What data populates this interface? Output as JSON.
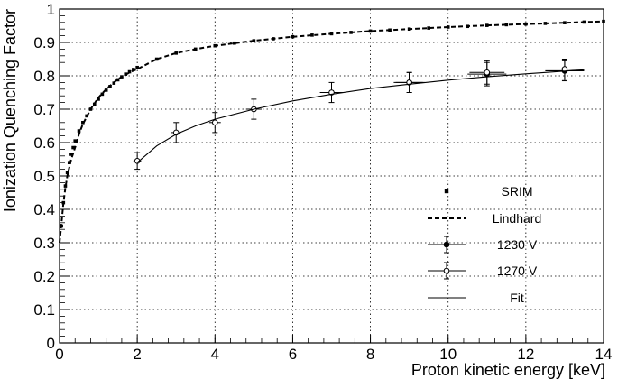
{
  "chart_data": {
    "type": "scatter",
    "xlabel": "Proton kinetic energy [keV]",
    "ylabel": "Ionization Quenching Factor",
    "xlim": [
      0,
      14
    ],
    "ylim": [
      0,
      1
    ],
    "x_ticks": [
      "0",
      "2",
      "4",
      "6",
      "8",
      "10",
      "12",
      "14"
    ],
    "y_ticks": [
      "0",
      "0.1",
      "0.2",
      "0.3",
      "0.4",
      "0.5",
      "0.6",
      "0.7",
      "0.8",
      "0.9",
      "1"
    ],
    "grid": true,
    "legend_position": "bottom-right",
    "series": [
      {
        "name": "SRIM",
        "style": "square-markers",
        "x": [
          0.05,
          0.1,
          0.15,
          0.2,
          0.25,
          0.3,
          0.35,
          0.4,
          0.5,
          0.6,
          0.7,
          0.8,
          0.9,
          1.0,
          1.1,
          1.2,
          1.3,
          1.4,
          1.5,
          1.6,
          1.7,
          1.8,
          1.9,
          2.0,
          2.5,
          3.0,
          3.5,
          4.0,
          4.5,
          5.0,
          5.5,
          6.0,
          6.5,
          7.0,
          7.5,
          8.0,
          8.5,
          9.0,
          9.5,
          10.0,
          10.5,
          11.0,
          11.5,
          12.0,
          12.5,
          13.0,
          13.5,
          14.0
        ],
        "y": [
          0.35,
          0.42,
          0.47,
          0.51,
          0.54,
          0.565,
          0.585,
          0.605,
          0.635,
          0.66,
          0.68,
          0.7,
          0.715,
          0.73,
          0.745,
          0.757,
          0.768,
          0.778,
          0.788,
          0.797,
          0.805,
          0.812,
          0.819,
          0.825,
          0.85,
          0.868,
          0.88,
          0.89,
          0.898,
          0.905,
          0.911,
          0.917,
          0.922,
          0.926,
          0.93,
          0.934,
          0.937,
          0.94,
          0.943,
          0.946,
          0.948,
          0.951,
          0.953,
          0.955,
          0.957,
          0.959,
          0.961,
          0.963
        ]
      },
      {
        "name": "Lindhard",
        "style": "dashed-line",
        "x": [
          0,
          0.05,
          0.1,
          0.15,
          0.2,
          0.3,
          0.4,
          0.5,
          0.6,
          0.8,
          1.0,
          1.2,
          1.5,
          1.8,
          2.0,
          2.5,
          3.0,
          3.5,
          4.0,
          5.0,
          6.0,
          7.0,
          8.0,
          9.0,
          10.0,
          11.0,
          12.0,
          13.0,
          14.0
        ],
        "y": [
          0.3,
          0.36,
          0.42,
          0.465,
          0.5,
          0.55,
          0.585,
          0.625,
          0.655,
          0.7,
          0.735,
          0.76,
          0.79,
          0.81,
          0.82,
          0.85,
          0.868,
          0.88,
          0.89,
          0.905,
          0.917,
          0.926,
          0.934,
          0.94,
          0.946,
          0.951,
          0.955,
          0.959,
          0.963
        ]
      },
      {
        "name": "1230 V",
        "style": "filled-circle-errorbars",
        "points": [
          {
            "x": 9,
            "y": 0.78,
            "xerr": 0.4,
            "yerr": 0.03
          },
          {
            "x": 11,
            "y": 0.805,
            "xerr": 0.5,
            "yerr": 0.035
          },
          {
            "x": 13,
            "y": 0.815,
            "xerr": 0.5,
            "yerr": 0.03
          }
        ]
      },
      {
        "name": "1270 V",
        "style": "open-circle-errorbars",
        "points": [
          {
            "x": 2,
            "y": 0.545,
            "xerr": 0.1,
            "yerr": 0.025
          },
          {
            "x": 3,
            "y": 0.63,
            "xerr": 0.12,
            "yerr": 0.03
          },
          {
            "x": 4,
            "y": 0.66,
            "xerr": 0.15,
            "yerr": 0.03
          },
          {
            "x": 5,
            "y": 0.7,
            "xerr": 0.2,
            "yerr": 0.03
          },
          {
            "x": 7,
            "y": 0.75,
            "xerr": 0.3,
            "yerr": 0.03
          },
          {
            "x": 9,
            "y": 0.78,
            "xerr": 0.35,
            "yerr": 0.03
          },
          {
            "x": 11,
            "y": 0.81,
            "xerr": 0.45,
            "yerr": 0.035
          },
          {
            "x": 13,
            "y": 0.82,
            "xerr": 0.5,
            "yerr": 0.03
          }
        ]
      },
      {
        "name": "Fit",
        "style": "solid-line",
        "x": [
          2,
          2.5,
          3,
          3.5,
          4,
          5,
          6,
          7,
          8,
          9,
          10,
          11,
          12,
          13,
          13.5
        ],
        "y": [
          0.54,
          0.59,
          0.625,
          0.65,
          0.67,
          0.7,
          0.725,
          0.745,
          0.762,
          0.775,
          0.787,
          0.797,
          0.806,
          0.814,
          0.818
        ]
      }
    ]
  }
}
